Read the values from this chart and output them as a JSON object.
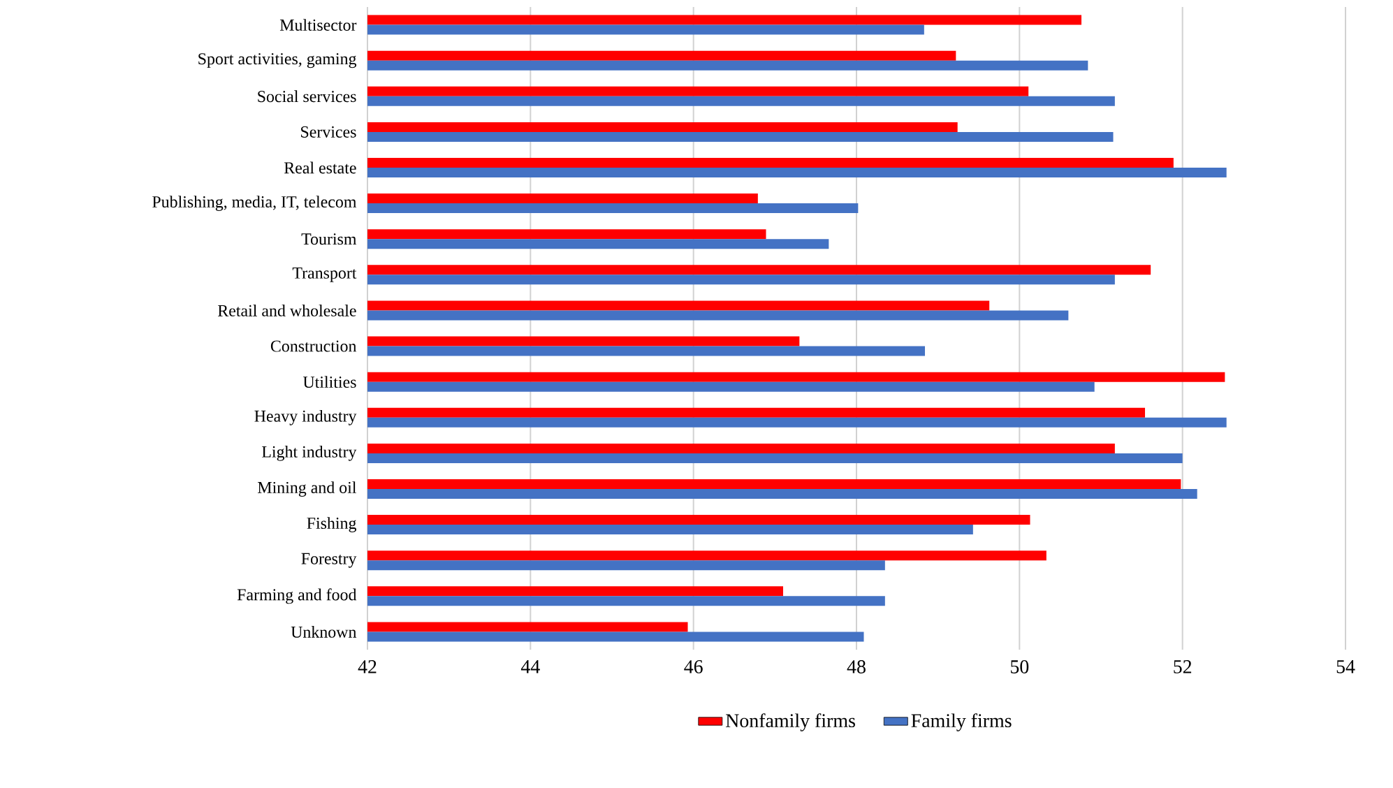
{
  "chart_data": {
    "type": "bar",
    "orientation": "horizontal",
    "categories": [
      "Multisector",
      "Sport activities, gaming",
      "Social services",
      "Services",
      "Real estate",
      "Publishing, media, IT, telecom",
      "Tourism",
      "Transport",
      "Retail and wholesale",
      "Construction",
      "Utilities",
      "Heavy industry",
      "Light industry",
      "Mining and oil",
      "Fishing",
      "Forestry",
      "Farming and food",
      "Unknown"
    ],
    "series": [
      {
        "name": "Nonfamily firms",
        "color": "#ff0000",
        "values": [
          50.76,
          49.22,
          50.11,
          49.24,
          51.89,
          46.79,
          46.89,
          51.61,
          49.63,
          47.3,
          52.52,
          51.54,
          51.17,
          51.98,
          50.13,
          50.33,
          47.1,
          45.93
        ]
      },
      {
        "name": "Family firms",
        "color": "#4472c4",
        "values": [
          48.83,
          50.84,
          51.17,
          51.15,
          52.54,
          48.02,
          47.66,
          51.17,
          50.6,
          48.84,
          50.92,
          52.54,
          52.0,
          52.18,
          49.43,
          48.35,
          48.35,
          48.09
        ]
      }
    ],
    "xlim": [
      42,
      54
    ],
    "xticks": [
      42,
      44,
      46,
      48,
      50,
      52,
      54
    ],
    "grid": "x",
    "legend": "bottom"
  }
}
